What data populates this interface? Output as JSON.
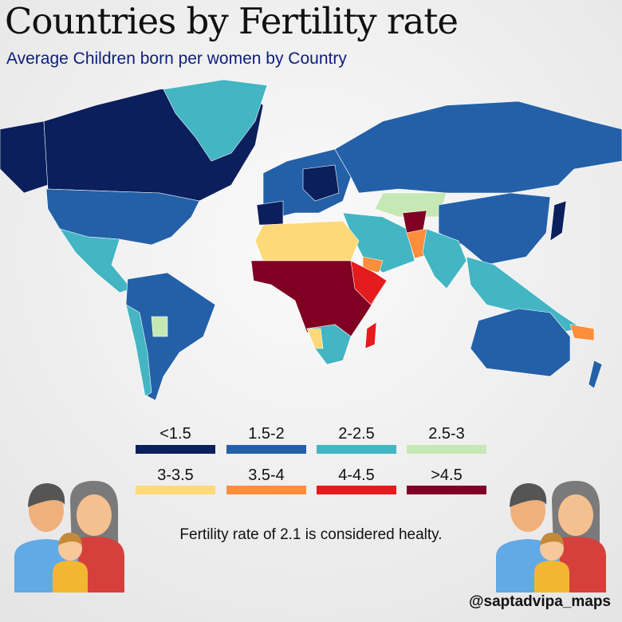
{
  "title": "Countries by Fertility rate",
  "subtitle": "Average Children born per women by Country",
  "legend": [
    {
      "label": "<1.5",
      "color": "#0b1f5c"
    },
    {
      "label": "1.5-2",
      "color": "#2360a8"
    },
    {
      "label": "2-2.5",
      "color": "#43b5c3"
    },
    {
      "label": "2.5-3",
      "color": "#c5e8b4"
    },
    {
      "label": "3-3.5",
      "color": "#fdd979"
    },
    {
      "label": "3.5-4",
      "color": "#fd8e3c"
    },
    {
      "label": "4-4.5",
      "color": "#e31b1c"
    },
    {
      "label": ">4.5",
      "color": "#7f0022"
    }
  ],
  "note": "Fertility rate of 2.1 is considered healty.",
  "handle": "@saptadvipa_maps"
}
